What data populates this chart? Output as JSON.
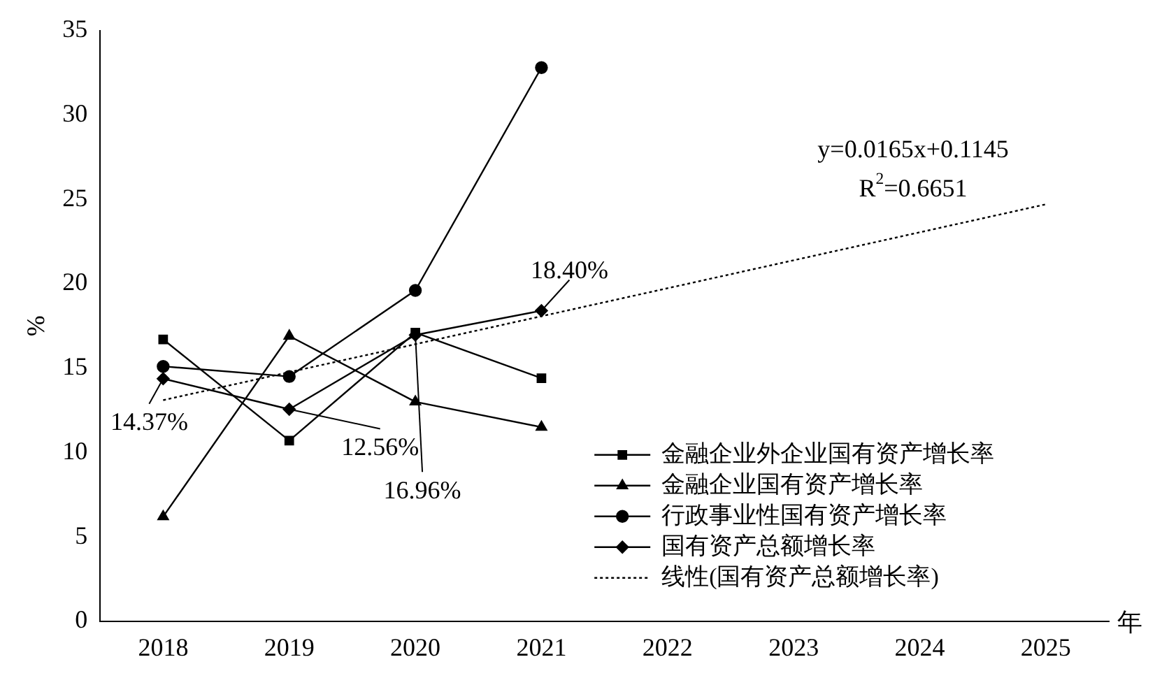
{
  "chart_data": {
    "type": "line",
    "xlabel": "年",
    "ylabel": "%",
    "categories": [
      "2018",
      "2019",
      "2020",
      "2021",
      "2022",
      "2023",
      "2024",
      "2025"
    ],
    "ylim": [
      0,
      35
    ],
    "yticks": [
      0,
      5,
      10,
      15,
      20,
      25,
      30,
      35
    ],
    "grid": false,
    "legend": "bottom right",
    "series": [
      {
        "name": "金融企业外企业国有资产增长率",
        "color": "#000000",
        "marker": "square",
        "values": [
          16.7,
          10.7,
          17.1,
          14.4,
          null,
          null,
          null,
          null
        ]
      },
      {
        "name": "金融企业国有资产增长率",
        "color": "#000000",
        "marker": "triangle",
        "values": [
          6.2,
          16.9,
          13.0,
          11.5,
          null,
          null,
          null,
          null
        ]
      },
      {
        "name": "行政事业性国有资产增长率",
        "color": "#000000",
        "marker": "circle",
        "values": [
          15.1,
          14.5,
          19.6,
          32.8,
          null,
          null,
          null,
          null
        ]
      },
      {
        "name": "国有资产总额增长率",
        "color": "#000000",
        "marker": "diamond",
        "values": [
          14.37,
          12.56,
          16.96,
          18.4,
          null,
          null,
          null,
          null
        ],
        "value_labels": [
          "14.37%",
          "12.56%",
          "16.96%",
          "18.40%",
          null,
          null,
          null,
          null
        ]
      },
      {
        "name": "线性(国有资产总额增长率)",
        "color": "#000000",
        "line_style": "dotted",
        "values": [
          13.1,
          null,
          null,
          null,
          null,
          null,
          null,
          24.7
        ]
      }
    ],
    "annotations": [
      "y=0.0165x+0.1145",
      "R$^{2}$=0.6651"
    ]
  }
}
